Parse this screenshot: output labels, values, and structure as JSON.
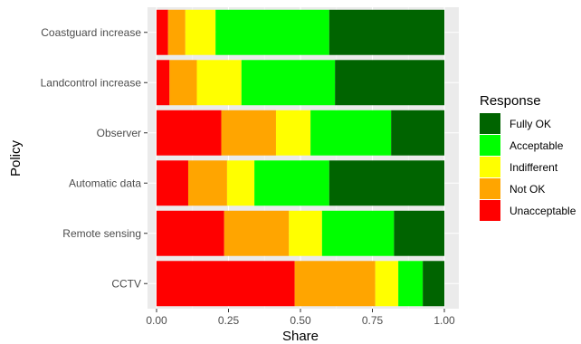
{
  "chart_data": {
    "type": "bar",
    "orientation": "horizontal",
    "stacked": true,
    "xlabel": "Share",
    "ylabel": "Policy",
    "xlim": [
      0,
      1
    ],
    "x_ticks": [
      "0.00",
      "0.25",
      "0.50",
      "0.75",
      "1.00"
    ],
    "grid": true,
    "legend_position": "right",
    "legend_title": "Response",
    "legend_entries": [
      "Fully OK",
      "Acceptable",
      "Indifferent",
      "Not OK",
      "Unacceptable"
    ],
    "categories": [
      "Coastguard increase",
      "Landcontrol increase",
      "Observer",
      "Automatic data",
      "Remote sensing",
      "CCTV"
    ],
    "series": [
      {
        "name": "Unacceptable",
        "color": "#ff0000",
        "values": [
          0.04,
          0.045,
          0.225,
          0.11,
          0.235,
          0.48
        ]
      },
      {
        "name": "Not OK",
        "color": "#ffa500",
        "values": [
          0.06,
          0.095,
          0.19,
          0.135,
          0.225,
          0.28
        ]
      },
      {
        "name": "Indifferent",
        "color": "#ffff00",
        "values": [
          0.105,
          0.155,
          0.12,
          0.095,
          0.115,
          0.08
        ]
      },
      {
        "name": "Acceptable",
        "color": "#00ff00",
        "values": [
          0.395,
          0.325,
          0.28,
          0.26,
          0.25,
          0.085
        ]
      },
      {
        "name": "Fully OK",
        "color": "#006400",
        "values": [
          0.4,
          0.38,
          0.185,
          0.4,
          0.175,
          0.075
        ]
      }
    ]
  }
}
